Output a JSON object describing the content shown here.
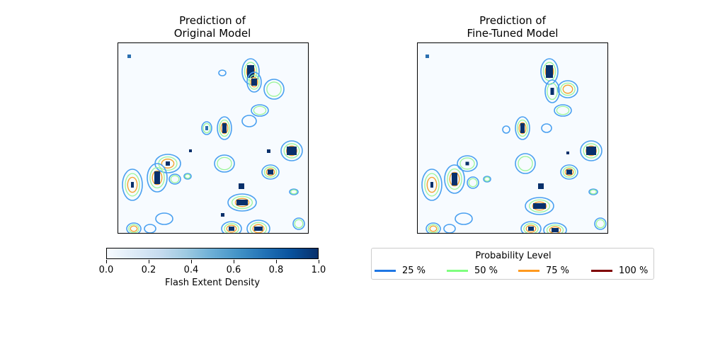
{
  "chart_data": [
    {
      "type": "heatmap",
      "title": "Prediction of\nOriginal Model",
      "title_lines": [
        "Prediction of",
        "Original Model"
      ],
      "colorbar": {
        "label": "Flash Extent Density",
        "range": [
          0.0,
          1.0
        ],
        "ticks": [
          "0.0",
          "0.2",
          "0.4",
          "0.6",
          "0.8",
          "1.0"
        ],
        "colormap": "Blues"
      },
      "contour_levels": [
        "25 %",
        "50 %",
        "75 %",
        "100 %"
      ],
      "axes_visible": false
    },
    {
      "type": "heatmap",
      "title": "Prediction of\nFine-Tuned Model",
      "title_lines": [
        "Prediction of",
        "Fine-Tuned Model"
      ],
      "contour_levels": [
        "25 %",
        "50 %",
        "75 %",
        "100 %"
      ],
      "axes_visible": false
    }
  ],
  "legend": {
    "title": "Probability Level",
    "items": [
      {
        "label": "25 %",
        "color": "#1f77e4"
      },
      {
        "label": "50 %",
        "color": "#7fff7f"
      },
      {
        "label": "75 %",
        "color": "#ff9a1f"
      },
      {
        "label": "100 %",
        "color": "#7f0000"
      }
    ]
  },
  "colors": {
    "c25": "#4aa0f0",
    "c50": "#9bf59b",
    "c75": "#f4a430",
    "fill_dark": "#08306b",
    "fill_mid": "#2b6fb0",
    "background": "#f7fbff"
  }
}
